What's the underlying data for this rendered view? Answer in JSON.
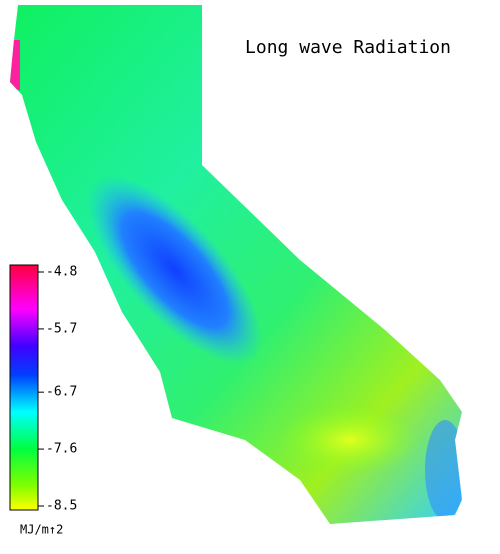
{
  "title": "Long wave Radiation",
  "colorbar": {
    "unit": "MJ/m↑2",
    "range": [
      -8.5,
      -4.8
    ],
    "ticks": [
      -4.8,
      -5.7,
      -6.7,
      -7.6,
      -8.5
    ]
  }
}
